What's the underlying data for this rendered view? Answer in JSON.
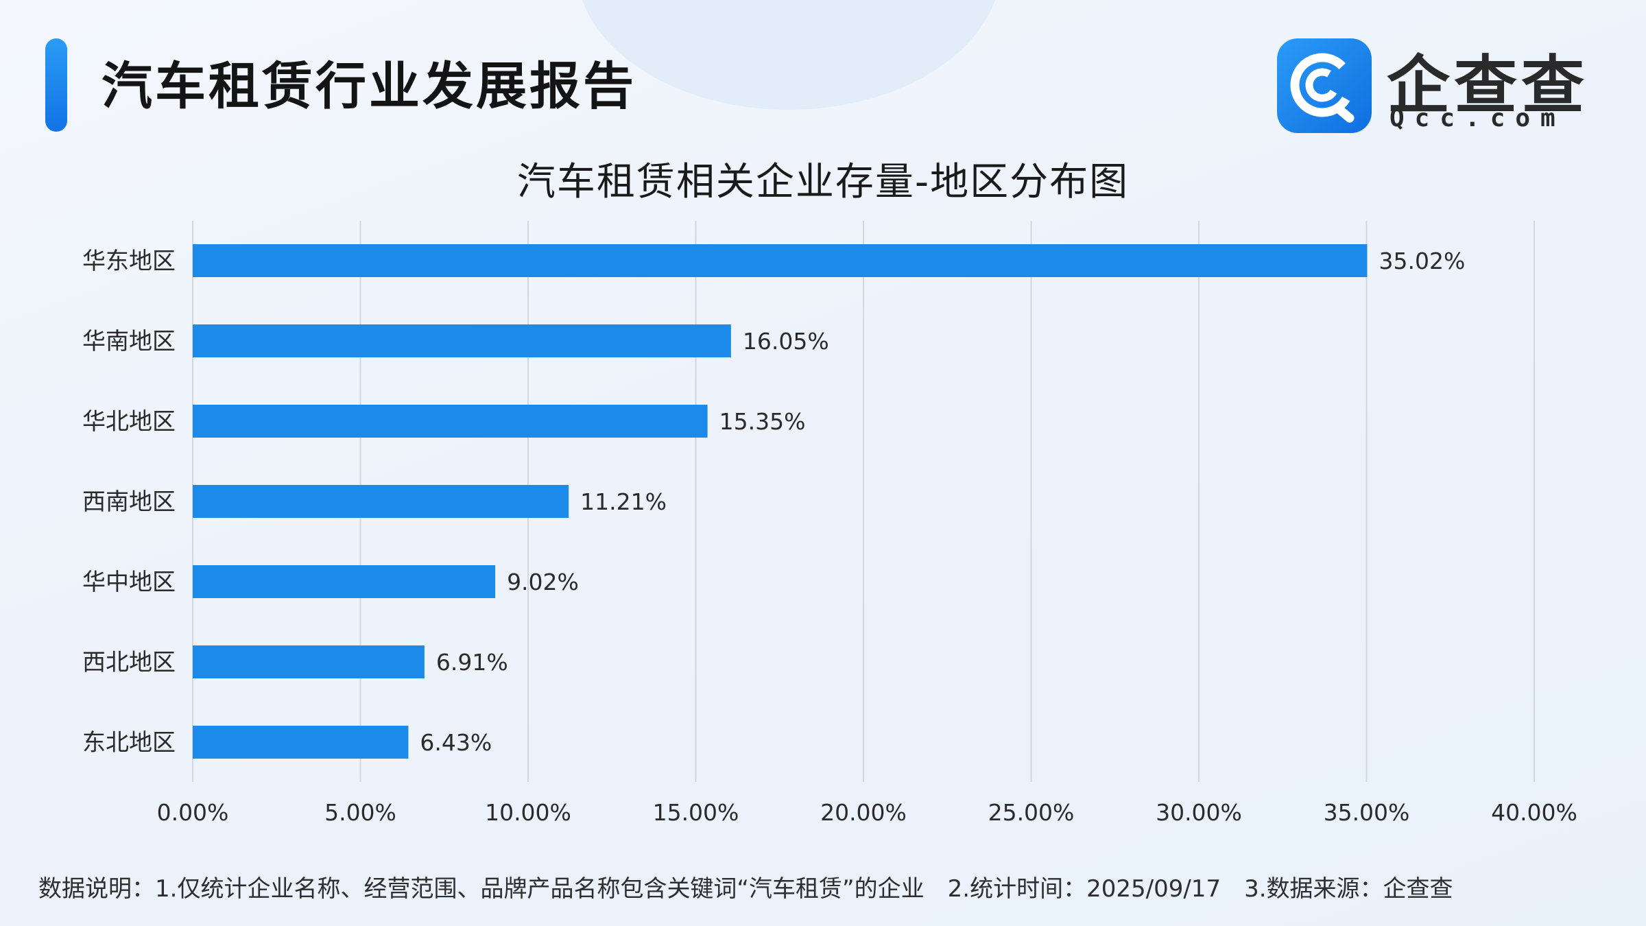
{
  "header": {
    "title": "汽车租赁行业发展报告"
  },
  "logo": {
    "name": "企查查",
    "domain": "Qcc.com",
    "icon": "qcc-logo-icon"
  },
  "colors": {
    "bar": "#1b8ae8",
    "accent": "#1a86ee",
    "grid": "#d2d7df",
    "label": "#2a2a2a"
  },
  "chart_data": {
    "type": "bar",
    "orientation": "horizontal",
    "title": "汽车租赁相关企业存量-地区分布图",
    "categories": [
      "华东地区",
      "华南地区",
      "华北地区",
      "西南地区",
      "华中地区",
      "西北地区",
      "东北地区"
    ],
    "values": [
      35.02,
      16.05,
      15.35,
      11.21,
      9.02,
      6.91,
      6.43
    ],
    "value_labels": [
      "35.02%",
      "16.05%",
      "15.35%",
      "11.21%",
      "9.02%",
      "6.91%",
      "6.43%"
    ],
    "x_ticks": [
      "0.00%",
      "5.00%",
      "10.00%",
      "15.00%",
      "20.00%",
      "25.00%",
      "30.00%",
      "35.00%",
      "40.00%"
    ],
    "xlim": [
      0,
      40
    ],
    "grid": "vertical"
  },
  "footnote": {
    "note1": "数据说明：1.仅统计企业名称、经营范围、品牌产品名称包含关键词“汽车租赁”的企业",
    "note2": "2.统计时间：2025/09/17",
    "note3": "3.数据来源：企查查"
  }
}
